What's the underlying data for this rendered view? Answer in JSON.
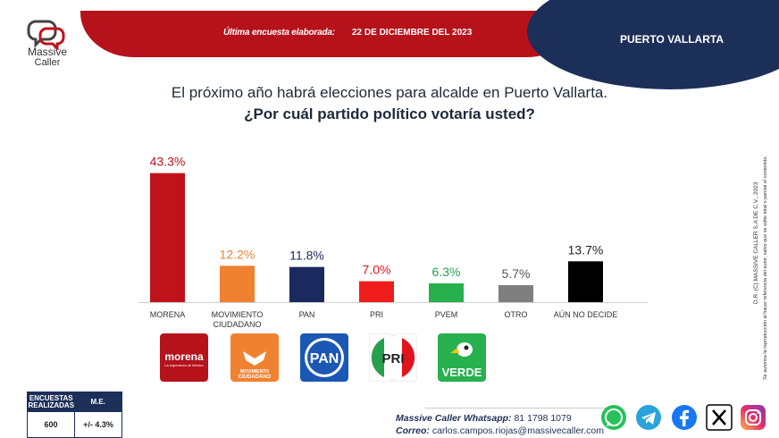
{
  "brand": {
    "name": "Massive",
    "name2": "Caller"
  },
  "header": {
    "label": "Última encuesta elaborada:",
    "date": "22 DE DICIEMBRE DEL 2023",
    "city": "PUERTO VALLARTA"
  },
  "question": {
    "line1": "El próximo año habrá elecciones para alcalde en Puerto Vallarta.",
    "line2": "¿Por cuál partido político votaría usted?"
  },
  "chart_data": {
    "type": "bar",
    "categories": [
      "MORENA",
      "MOVIMIENTO CIUDADANO",
      "PAN",
      "PRI",
      "PVEM",
      "OTRO",
      "AÚN NO DECIDE"
    ],
    "values": [
      43.3,
      12.2,
      11.8,
      7.0,
      6.3,
      5.7,
      13.7
    ],
    "value_labels": [
      "43.3%",
      "12.2%",
      "11.8%",
      "7.0%",
      "6.3%",
      "5.7%",
      "13.7%"
    ],
    "colors": [
      "#c0121b",
      "#f08131",
      "#1b2a5e",
      "#f01d1d",
      "#26b04e",
      "#7f7f7f",
      "#000000"
    ],
    "label_colors": [
      "#b5121b",
      "#f08131",
      "#1b2a5e",
      "#e0141c",
      "#26a04a",
      "#555555",
      "#222222"
    ],
    "ylim": [
      0,
      45
    ],
    "grid": false,
    "title": "",
    "xlabel": "",
    "ylabel": ""
  },
  "party_logos": {
    "morena": {
      "text": "morena",
      "sub": "La esperanza de México"
    },
    "mc": {
      "text1": "MOVIMIENTO",
      "text2": "CIUDADANO"
    },
    "pan": {
      "text": "PAN"
    },
    "pri": {
      "text": "PRI"
    },
    "pvem": {
      "text": "VERDE"
    }
  },
  "side_note": {
    "line1": "D.R. (C) MASSIVE CALLER S.A DE C.V., 2023",
    "line2": "Se autoriza la reproducción al hacer referencia del autor, salvo que se edite total o parcial el contenido."
  },
  "table": {
    "col1": "ENCUESTAS REALIZADAS",
    "col2": "M.E.",
    "val1": "600",
    "val2": "+/- 4.3%"
  },
  "contact": {
    "whatsapp_label": "Massive Caller Whatsapp:",
    "whatsapp": "81 1798 1079",
    "email_label": "Correo:",
    "email": "carlos.campos.riojas@massivecaller.com"
  },
  "social_icons": [
    "whatsapp-icon",
    "telegram-icon",
    "facebook-icon",
    "x-icon",
    "instagram-icon"
  ]
}
